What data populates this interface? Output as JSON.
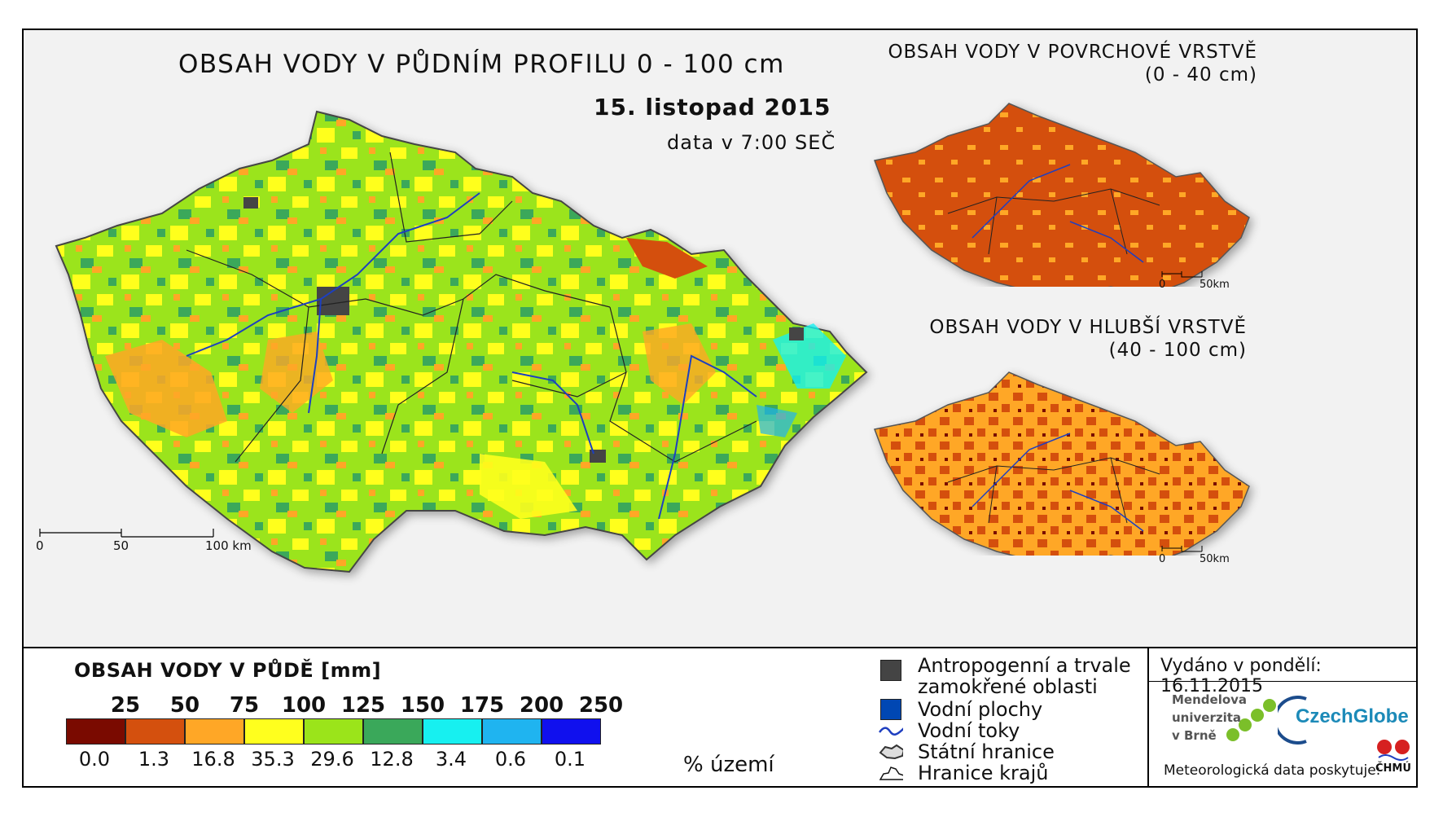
{
  "main_title": "OBSAH VODY V PŮDNÍM PROFILU 0 - 100 cm",
  "date": "15. listopad 2015",
  "data_time": "data v 7:00 SEČ",
  "inset_top": {
    "title": "OBSAH VODY V POVRCHOVÉ VRSTVĚ",
    "subtitle": "(0 - 40 cm)",
    "scale": [
      "0",
      "50km"
    ]
  },
  "inset_bottom": {
    "title": "OBSAH VODY V HLUBŠÍ VRSTVĚ",
    "subtitle": "(40 - 100 cm)",
    "scale": [
      "0",
      "50km"
    ]
  },
  "main_scale": [
    "0",
    "50",
    "100 km"
  ],
  "legend": {
    "title": "OBSAH VODY V PŮDĚ [mm]",
    "thresholds": [
      "25",
      "50",
      "75",
      "100",
      "125",
      "150",
      "175",
      "200",
      "250"
    ],
    "classes": [
      {
        "color": "#7a0a00",
        "percent": "0.0"
      },
      {
        "color": "#d4500e",
        "percent": "1.3"
      },
      {
        "color": "#ffa726",
        "percent": "16.8"
      },
      {
        "color": "#ffff1e",
        "percent": "35.3"
      },
      {
        "color": "#9be41a",
        "percent": "29.6"
      },
      {
        "color": "#3aa85a",
        "percent": "12.8"
      },
      {
        "color": "#17f0f0",
        "percent": "3.4"
      },
      {
        "color": "#1fb4f0",
        "percent": "0.6"
      },
      {
        "color": "#1010ee",
        "percent": "0.1"
      }
    ],
    "percent_unit": "% území"
  },
  "symbols": [
    {
      "icon": "dark-square-icon",
      "label": "Antropogenní a trvale\nzamokřené oblasti"
    },
    {
      "icon": "blue-square-icon",
      "label": "Vodní plochy"
    },
    {
      "icon": "river-line-icon",
      "label": "Vodní toky"
    },
    {
      "icon": "state-border-icon",
      "label": "Státní hranice"
    },
    {
      "icon": "region-border-icon",
      "label": "Hranice krajů"
    }
  ],
  "issued": "Vydáno v pondělí: 16.11.2015",
  "logos": {
    "mendel": "Mendelova\nuniverzita\nv Brně",
    "czechglobe": "CzechGlobe",
    "chmu": "ČHMÚ"
  },
  "met_data": "Meteorologická data poskytuje:"
}
